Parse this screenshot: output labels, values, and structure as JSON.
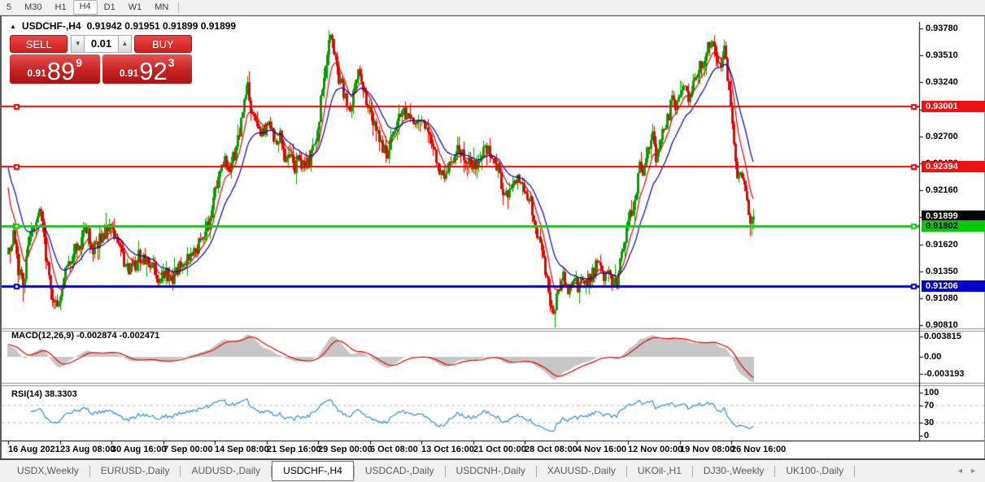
{
  "toolbar": {
    "timeframes": [
      "5",
      "M30",
      "H1",
      "H4",
      "D1",
      "W1",
      "MN"
    ],
    "active_timeframe": "H4"
  },
  "window": {
    "collapse_marker": "▲",
    "symbol_title": "USDCHF-,H4",
    "ohlc_text": "0.91942 0.91951 0.91899 0.91899"
  },
  "trade_panel": {
    "sell_label": "SELL",
    "buy_label": "BUY",
    "lot_value": "0.01",
    "spin_down": "▼",
    "spin_up": "▲",
    "sell_price": {
      "prefix": "0.91",
      "big": "89",
      "pip": "9"
    },
    "buy_price": {
      "prefix": "0.91",
      "big": "92",
      "pip": "3"
    }
  },
  "price_axis": {
    "ticks": [
      "0.93780",
      "0.93510",
      "0.93240",
      "0.92970",
      "0.92700",
      "0.92430",
      "0.92160",
      "0.91890",
      "0.91620",
      "0.91350",
      "0.91080",
      "0.90810"
    ],
    "badges": [
      {
        "value": "0.93001",
        "bg": "#ee1111",
        "fg": "#ffffff"
      },
      {
        "value": "0.92394",
        "bg": "#ee1111",
        "fg": "#ffffff"
      },
      {
        "value": "0.91899",
        "bg": "#000000",
        "fg": "#ffffff"
      },
      {
        "value": "0.91802",
        "bg": "#00cc00",
        "fg": "#000000"
      },
      {
        "value": "0.91206",
        "bg": "#0000cc",
        "fg": "#ffffff"
      }
    ]
  },
  "macd_panel": {
    "label": "MACD(12,26,9) -0.002874 -0.002471",
    "axis": [
      "0.003815",
      "0.00",
      "-0.003193"
    ]
  },
  "rsi_panel": {
    "label": "RSI(14) 38.3303",
    "axis": [
      "100",
      "70",
      "30",
      "0"
    ]
  },
  "x_axis": {
    "labels": [
      "16 Aug 2021",
      "23 Aug 08:00",
      "30 Aug 16:00",
      "7 Sep 00:00",
      "14 Sep 08:00",
      "21 Sep 16:00",
      "29 Sep 00:00",
      "6 Oct 08:00",
      "13 Oct 16:00",
      "21 Oct 00:00",
      "28 Oct 08:00",
      "4 Nov 16:00",
      "12 Nov 00:00",
      "19 Nov 08:00",
      "26 Nov 16:00"
    ]
  },
  "tabs": {
    "items": [
      "USDX,Weekly",
      "EURUSD-,Daily",
      "AUDUSD-,Daily",
      "USDCHF-,H4",
      "USDCAD-,Daily",
      "USDCNH-,Daily",
      "XAUUSD-,Daily",
      "UKOil-,H1",
      "DJ30-,Weekly",
      "UK100-,Daily"
    ],
    "active": "USDCHF-,H4",
    "scroll_left": "◂",
    "scroll_right": "▸"
  },
  "chart_data": {
    "type": "candlestick",
    "symbol": "USDCHF-",
    "timeframe": "H4",
    "last_quote": {
      "open": 0.91942,
      "high": 0.91951,
      "low": 0.91899,
      "close": 0.91899,
      "bid": 0.91899,
      "ask": 0.91923
    },
    "current_price": 0.91899,
    "y_axis_ticks": [
      0.9378,
      0.9351,
      0.9324,
      0.9297,
      0.927,
      0.9243,
      0.9216,
      0.9189,
      0.9162,
      0.9135,
      0.9108,
      0.9081
    ],
    "horizontal_lines": [
      {
        "price": 0.93001,
        "color": "#f00000",
        "width": 2
      },
      {
        "price": 0.92394,
        "color": "#f00000",
        "width": 2
      },
      {
        "price": 0.91802,
        "color": "#00d800",
        "width": 3
      },
      {
        "price": 0.91206,
        "color": "#0000e0",
        "width": 3
      }
    ],
    "candle_colors": {
      "up": "#00a000",
      "down": "#e80000"
    },
    "moving_averages": [
      {
        "period": 9,
        "color": "#e80000"
      },
      {
        "period": 21,
        "color": "#0000b0"
      }
    ],
    "macd": {
      "fast": 12,
      "slow": 26,
      "signal": 9,
      "current": -0.002874,
      "current_signal": -0.002471,
      "axis": [
        0.003815,
        0.0,
        -0.003193
      ],
      "histogram_color": "#c6c6c6",
      "signal_color": "#e80000"
    },
    "rsi": {
      "period": 14,
      "current": 38.3303,
      "levels": [
        70,
        30
      ],
      "axis": [
        100,
        70,
        30,
        0
      ],
      "color": "#2f8fdf",
      "level_color": "#c0c0c0"
    },
    "bar_spacing_px": 2,
    "price_path": [
      [
        8,
        0.9152
      ],
      [
        14,
        0.917
      ],
      [
        20,
        0.9138
      ],
      [
        26,
        0.9121
      ],
      [
        32,
        0.9158
      ],
      [
        40,
        0.9185
      ],
      [
        48,
        0.9193
      ],
      [
        54,
        0.915
      ],
      [
        60,
        0.9118
      ],
      [
        66,
        0.91
      ],
      [
        72,
        0.9112
      ],
      [
        80,
        0.914
      ],
      [
        88,
        0.9155
      ],
      [
        96,
        0.9162
      ],
      [
        104,
        0.918
      ],
      [
        112,
        0.9155
      ],
      [
        120,
        0.9168
      ],
      [
        128,
        0.9175
      ],
      [
        136,
        0.9178
      ],
      [
        144,
        0.916
      ],
      [
        152,
        0.9142
      ],
      [
        160,
        0.9136
      ],
      [
        168,
        0.915
      ],
      [
        176,
        0.9148
      ],
      [
        184,
        0.9142
      ],
      [
        192,
        0.9122
      ],
      [
        200,
        0.9134
      ],
      [
        208,
        0.9126
      ],
      [
        216,
        0.9138
      ],
      [
        224,
        0.9145
      ],
      [
        232,
        0.9152
      ],
      [
        240,
        0.916
      ],
      [
        248,
        0.9172
      ],
      [
        256,
        0.9188
      ],
      [
        262,
        0.9215
      ],
      [
        268,
        0.924
      ],
      [
        274,
        0.9248
      ],
      [
        280,
        0.9238
      ],
      [
        286,
        0.9252
      ],
      [
        292,
        0.9275
      ],
      [
        298,
        0.9305
      ],
      [
        302,
        0.9318
      ],
      [
        306,
        0.93
      ],
      [
        312,
        0.9288
      ],
      [
        318,
        0.927
      ],
      [
        324,
        0.9282
      ],
      [
        330,
        0.9276
      ],
      [
        336,
        0.9262
      ],
      [
        342,
        0.927
      ],
      [
        348,
        0.9242
      ],
      [
        354,
        0.9252
      ],
      [
        360,
        0.924
      ],
      [
        366,
        0.9248
      ],
      [
        372,
        0.9238
      ],
      [
        378,
        0.9244
      ],
      [
        384,
        0.926
      ],
      [
        390,
        0.929
      ],
      [
        396,
        0.9332
      ],
      [
        402,
        0.936
      ],
      [
        406,
        0.9371
      ],
      [
        410,
        0.9345
      ],
      [
        416,
        0.9322
      ],
      [
        422,
        0.9308
      ],
      [
        428,
        0.9298
      ],
      [
        434,
        0.9325
      ],
      [
        438,
        0.9338
      ],
      [
        444,
        0.932
      ],
      [
        450,
        0.9302
      ],
      [
        456,
        0.9288
      ],
      [
        462,
        0.9278
      ],
      [
        468,
        0.9258
      ],
      [
        474,
        0.9252
      ],
      [
        480,
        0.9268
      ],
      [
        486,
        0.9285
      ],
      [
        492,
        0.9298
      ],
      [
        498,
        0.929
      ],
      [
        506,
        0.9284
      ],
      [
        514,
        0.9286
      ],
      [
        522,
        0.9282
      ],
      [
        530,
        0.9262
      ],
      [
        538,
        0.9238
      ],
      [
        544,
        0.9232
      ],
      [
        550,
        0.9244
      ],
      [
        558,
        0.9258
      ],
      [
        566,
        0.9252
      ],
      [
        574,
        0.9242
      ],
      [
        582,
        0.924
      ],
      [
        590,
        0.9252
      ],
      [
        598,
        0.9258
      ],
      [
        606,
        0.9248
      ],
      [
        612,
        0.9232
      ],
      [
        618,
        0.9208
      ],
      [
        624,
        0.9212
      ],
      [
        630,
        0.9222
      ],
      [
        638,
        0.9228
      ],
      [
        644,
        0.9218
      ],
      [
        650,
        0.9205
      ],
      [
        656,
        0.9182
      ],
      [
        662,
        0.916
      ],
      [
        668,
        0.9138
      ],
      [
        674,
        0.9102
      ],
      [
        678,
        0.9095
      ],
      [
        684,
        0.9118
      ],
      [
        690,
        0.9132
      ],
      [
        696,
        0.9112
      ],
      [
        702,
        0.9126
      ],
      [
        708,
        0.912
      ],
      [
        714,
        0.9128
      ],
      [
        720,
        0.9124
      ],
      [
        726,
        0.9135
      ],
      [
        732,
        0.9142
      ],
      [
        738,
        0.913
      ],
      [
        744,
        0.9134
      ],
      [
        750,
        0.9126
      ],
      [
        756,
        0.9124
      ],
      [
        762,
        0.915
      ],
      [
        768,
        0.918
      ],
      [
        772,
        0.92
      ],
      [
        776,
        0.9192
      ],
      [
        780,
        0.9218
      ],
      [
        784,
        0.9238
      ],
      [
        788,
        0.9232
      ],
      [
        792,
        0.9246
      ],
      [
        796,
        0.9258
      ],
      [
        800,
        0.9268
      ],
      [
        804,
        0.9248
      ],
      [
        808,
        0.9258
      ],
      [
        812,
        0.9275
      ],
      [
        816,
        0.9282
      ],
      [
        820,
        0.9292
      ],
      [
        824,
        0.9308
      ],
      [
        828,
        0.93
      ],
      [
        832,
        0.9312
      ],
      [
        836,
        0.9318
      ],
      [
        840,
        0.9315
      ],
      [
        844,
        0.9308
      ],
      [
        848,
        0.9322
      ],
      [
        852,
        0.9328
      ],
      [
        856,
        0.9336
      ],
      [
        860,
        0.9342
      ],
      [
        864,
        0.935
      ],
      [
        868,
        0.936
      ],
      [
        872,
        0.937
      ],
      [
        876,
        0.9356
      ],
      [
        880,
        0.9344
      ],
      [
        884,
        0.9342
      ],
      [
        888,
        0.9354
      ],
      [
        892,
        0.9332
      ],
      [
        896,
        0.9296
      ],
      [
        900,
        0.9262
      ],
      [
        904,
        0.9232
      ],
      [
        908,
        0.9238
      ],
      [
        912,
        0.9226
      ],
      [
        916,
        0.9206
      ],
      [
        920,
        0.9178
      ],
      [
        924,
        0.919
      ]
    ],
    "x_labels": [
      "16 Aug 2021",
      "23 Aug 08:00",
      "30 Aug 16:00",
      "7 Sep 00:00",
      "14 Sep 08:00",
      "21 Sep 16:00",
      "29 Sep 00:00",
      "6 Oct 08:00",
      "13 Oct 16:00",
      "21 Oct 00:00",
      "28 Oct 08:00",
      "4 Nov 16:00",
      "12 Nov 00:00",
      "19 Nov 08:00",
      "26 Nov 16:00"
    ]
  }
}
